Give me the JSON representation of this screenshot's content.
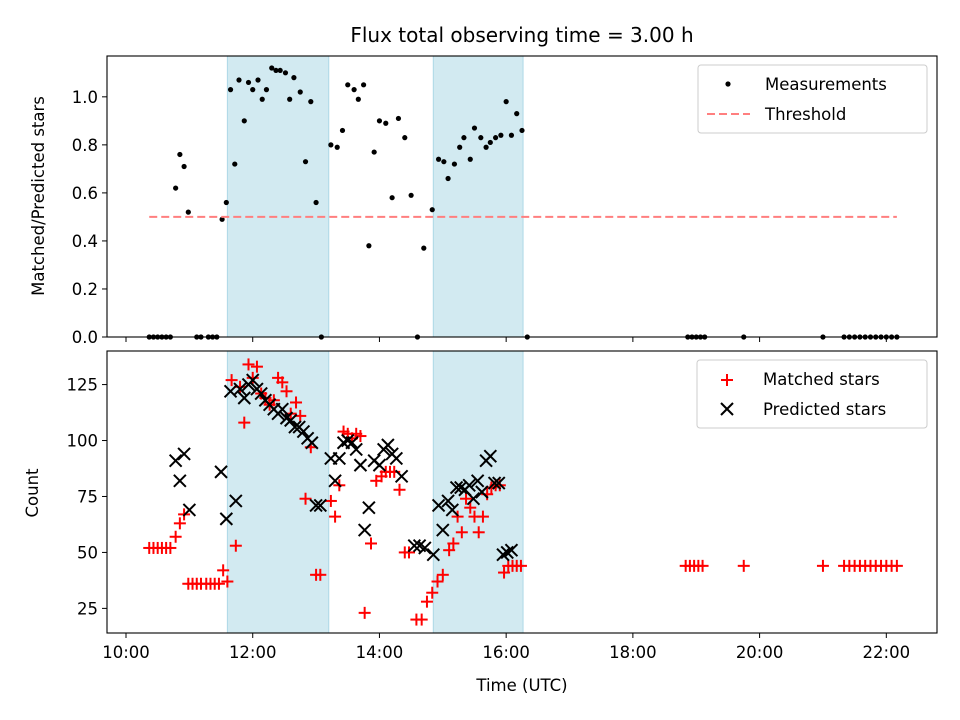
{
  "chart_data": {
    "title": "Flux total observing time = 3.00 h",
    "xlabel": "Time (UTC)",
    "x_ticks": [
      "10:00",
      "12:00",
      "14:00",
      "16:00",
      "18:00",
      "20:00",
      "22:00"
    ],
    "shaded_spans": [
      [
        "11:36",
        "13:12"
      ],
      [
        "14:51",
        "16:16"
      ]
    ],
    "shade_color": "#add8e6",
    "top": {
      "type": "scatter",
      "ylabel": "Matched/Predicted stars",
      "ylim": [
        0,
        1.17
      ],
      "y_ticks": [
        "0.0",
        "0.2",
        "0.4",
        "0.6",
        "0.8",
        "1.0"
      ],
      "legend_position": "top-right",
      "series": [
        {
          "name": "Measurements",
          "color": "#000000",
          "marker": "dot",
          "points": [
            [
              "10:22",
              0
            ],
            [
              "10:26",
              0
            ],
            [
              "10:30",
              0
            ],
            [
              "10:34",
              0
            ],
            [
              "10:38",
              0
            ],
            [
              "10:42",
              0
            ],
            [
              "10:47",
              0.62
            ],
            [
              "10:51",
              0.76
            ],
            [
              "10:55",
              0.71
            ],
            [
              "10:59",
              0.52
            ],
            [
              "11:07",
              0
            ],
            [
              "11:11",
              0
            ],
            [
              "11:18",
              0
            ],
            [
              "11:22",
              0
            ],
            [
              "11:26",
              0
            ],
            [
              "11:31",
              0.49
            ],
            [
              "11:35",
              0.56
            ],
            [
              "11:39",
              1.03
            ],
            [
              "11:43",
              0.72
            ],
            [
              "11:47",
              1.07
            ],
            [
              "11:52",
              0.9
            ],
            [
              "11:56",
              1.06
            ],
            [
              "12:00",
              1.03
            ],
            [
              "12:05",
              1.07
            ],
            [
              "12:09",
              0.99
            ],
            [
              "12:13",
              1.03
            ],
            [
              "12:18",
              1.12
            ],
            [
              "12:22",
              1.11
            ],
            [
              "12:26",
              1.11
            ],
            [
              "12:31",
              1.1
            ],
            [
              "12:35",
              0.99
            ],
            [
              "12:39",
              1.08
            ],
            [
              "12:45",
              1.02
            ],
            [
              "12:50",
              0.73
            ],
            [
              "12:55",
              0.98
            ],
            [
              "13:00",
              0.56
            ],
            [
              "13:05",
              0
            ],
            [
              "13:14",
              0.8
            ],
            [
              "13:20",
              0.79
            ],
            [
              "13:25",
              0.86
            ],
            [
              "13:30",
              1.05
            ],
            [
              "13:36",
              1.03
            ],
            [
              "13:40",
              0.99
            ],
            [
              "13:45",
              1.05
            ],
            [
              "13:50",
              0.38
            ],
            [
              "13:55",
              0.77
            ],
            [
              "14:00",
              0.9
            ],
            [
              "14:06",
              0.89
            ],
            [
              "14:12",
              0.58
            ],
            [
              "14:18",
              0.91
            ],
            [
              "14:24",
              0.83
            ],
            [
              "14:30",
              0.59
            ],
            [
              "14:36",
              0
            ],
            [
              "14:42",
              0.37
            ],
            [
              "14:50",
              0.53
            ],
            [
              "14:56",
              0.74
            ],
            [
              "15:01",
              0.73
            ],
            [
              "15:05",
              0.66
            ],
            [
              "15:11",
              0.72
            ],
            [
              "15:16",
              0.79
            ],
            [
              "15:20",
              0.83
            ],
            [
              "15:26",
              0.74
            ],
            [
              "15:30",
              0.87
            ],
            [
              "15:36",
              0.83
            ],
            [
              "15:41",
              0.79
            ],
            [
              "15:45",
              0.81
            ],
            [
              "15:50",
              0.83
            ],
            [
              "15:55",
              0.84
            ],
            [
              "16:00",
              0.98
            ],
            [
              "16:05",
              0.84
            ],
            [
              "16:10",
              0.93
            ],
            [
              "16:15",
              0.86
            ],
            [
              "16:20",
              0
            ],
            [
              "18:52",
              0
            ],
            [
              "18:56",
              0
            ],
            [
              "19:00",
              0
            ],
            [
              "19:04",
              0
            ],
            [
              "19:08",
              0
            ],
            [
              "19:45",
              0
            ],
            [
              "21:00",
              0
            ],
            [
              "21:20",
              0
            ],
            [
              "21:25",
              0
            ],
            [
              "21:30",
              0
            ],
            [
              "21:35",
              0
            ],
            [
              "21:40",
              0
            ],
            [
              "21:45",
              0
            ],
            [
              "21:50",
              0
            ],
            [
              "21:55",
              0
            ],
            [
              "22:00",
              0
            ],
            [
              "22:05",
              0
            ],
            [
              "22:10",
              0
            ]
          ]
        },
        {
          "name": "Threshold",
          "color": "#ff7f7f",
          "style": "dashed",
          "points": [
            [
              "10:22",
              0.5
            ],
            [
              "22:10",
              0.5
            ]
          ]
        }
      ]
    },
    "bottom": {
      "type": "scatter",
      "ylabel": "Count",
      "ylim": [
        14,
        140
      ],
      "y_ticks": [
        "25",
        "50",
        "75",
        "100",
        "125"
      ],
      "legend_position": "top-right",
      "series": [
        {
          "name": "Matched stars",
          "color": "#ff0000",
          "marker": "plus",
          "points": [
            [
              "10:22",
              52
            ],
            [
              "10:26",
              52
            ],
            [
              "10:30",
              52
            ],
            [
              "10:34",
              52
            ],
            [
              "10:38",
              52
            ],
            [
              "10:42",
              52
            ],
            [
              "10:47",
              57
            ],
            [
              "10:51",
              63
            ],
            [
              "10:55",
              67
            ],
            [
              "10:59",
              36
            ],
            [
              "11:03",
              36
            ],
            [
              "11:07",
              36
            ],
            [
              "11:11",
              36
            ],
            [
              "11:16",
              36
            ],
            [
              "11:20",
              36
            ],
            [
              "11:24",
              36
            ],
            [
              "11:28",
              36
            ],
            [
              "11:32",
              42
            ],
            [
              "11:36",
              37
            ],
            [
              "11:40",
              127
            ],
            [
              "11:44",
              53
            ],
            [
              "11:48",
              124
            ],
            [
              "11:52",
              108
            ],
            [
              "11:56",
              134
            ],
            [
              "12:00",
              128
            ],
            [
              "12:04",
              133
            ],
            [
              "12:08",
              121
            ],
            [
              "12:12",
              119
            ],
            [
              "12:16",
              116
            ],
            [
              "12:20",
              118
            ],
            [
              "12:24",
              128
            ],
            [
              "12:28",
              126
            ],
            [
              "12:32",
              122
            ],
            [
              "12:36",
              112
            ],
            [
              "12:41",
              117
            ],
            [
              "12:45",
              111
            ],
            [
              "12:50",
              74
            ],
            [
              "12:55",
              97
            ],
            [
              "13:00",
              40
            ],
            [
              "13:04",
              40
            ],
            [
              "13:14",
              73
            ],
            [
              "13:18",
              66
            ],
            [
              "13:22",
              80
            ],
            [
              "13:26",
              104
            ],
            [
              "13:30",
              103
            ],
            [
              "13:34",
              101
            ],
            [
              "13:38",
              103
            ],
            [
              "13:42",
              102
            ],
            [
              "13:46",
              23
            ],
            [
              "13:52",
              54
            ],
            [
              "13:57",
              82
            ],
            [
              "14:02",
              84
            ],
            [
              "14:06",
              86
            ],
            [
              "14:10",
              86
            ],
            [
              "14:14",
              86
            ],
            [
              "14:19",
              78
            ],
            [
              "14:24",
              50
            ],
            [
              "14:28",
              50
            ],
            [
              "14:35",
              20
            ],
            [
              "14:40",
              20
            ],
            [
              "14:45",
              28
            ],
            [
              "14:50",
              32
            ],
            [
              "14:55",
              37
            ],
            [
              "15:00",
              40
            ],
            [
              "15:06",
              51
            ],
            [
              "15:10",
              54
            ],
            [
              "15:14",
              66
            ],
            [
              "15:18",
              59
            ],
            [
              "15:22",
              74
            ],
            [
              "15:26",
              70
            ],
            [
              "15:30",
              66
            ],
            [
              "15:34",
              59
            ],
            [
              "15:38",
              66
            ],
            [
              "15:42",
              76
            ],
            [
              "15:46",
              79
            ],
            [
              "15:50",
              80
            ],
            [
              "15:54",
              80
            ],
            [
              "15:58",
              41
            ],
            [
              "16:02",
              44
            ],
            [
              "16:06",
              44
            ],
            [
              "16:10",
              44
            ],
            [
              "16:14",
              44
            ],
            [
              "18:50",
              44
            ],
            [
              "18:54",
              44
            ],
            [
              "18:58",
              44
            ],
            [
              "19:02",
              44
            ],
            [
              "19:06",
              44
            ],
            [
              "19:45",
              44
            ],
            [
              "21:00",
              44
            ],
            [
              "21:20",
              44
            ],
            [
              "21:25",
              44
            ],
            [
              "21:30",
              44
            ],
            [
              "21:35",
              44
            ],
            [
              "21:40",
              44
            ],
            [
              "21:45",
              44
            ],
            [
              "21:50",
              44
            ],
            [
              "21:55",
              44
            ],
            [
              "22:00",
              44
            ],
            [
              "22:05",
              44
            ],
            [
              "22:10",
              44
            ]
          ]
        },
        {
          "name": "Predicted stars",
          "color": "#000000",
          "marker": "x",
          "points": [
            [
              "10:47",
              91
            ],
            [
              "10:51",
              82
            ],
            [
              "10:55",
              94
            ],
            [
              "11:00",
              69
            ],
            [
              "11:30",
              86
            ],
            [
              "11:35",
              65
            ],
            [
              "11:39",
              122
            ],
            [
              "11:44",
              73
            ],
            [
              "11:48",
              123
            ],
            [
              "11:52",
              119
            ],
            [
              "11:56",
              125
            ],
            [
              "12:00",
              127
            ],
            [
              "12:04",
              123
            ],
            [
              "12:08",
              121
            ],
            [
              "12:12",
              118
            ],
            [
              "12:16",
              116
            ],
            [
              "12:20",
              114
            ],
            [
              "12:24",
              112
            ],
            [
              "12:28",
              114
            ],
            [
              "12:32",
              110
            ],
            [
              "12:36",
              109
            ],
            [
              "12:40",
              106
            ],
            [
              "12:44",
              106
            ],
            [
              "12:48",
              104
            ],
            [
              "12:52",
              101
            ],
            [
              "12:56",
              99
            ],
            [
              "13:00",
              71
            ],
            [
              "13:04",
              71
            ],
            [
              "13:14",
              92
            ],
            [
              "13:18",
              82
            ],
            [
              "13:22",
              92
            ],
            [
              "13:26",
              99
            ],
            [
              "13:30",
              100
            ],
            [
              "13:34",
              99
            ],
            [
              "13:38",
              96
            ],
            [
              "13:42",
              89
            ],
            [
              "13:46",
              60
            ],
            [
              "13:50",
              70
            ],
            [
              "13:55",
              91
            ],
            [
              "14:00",
              89
            ],
            [
              "14:04",
              96
            ],
            [
              "14:08",
              98
            ],
            [
              "14:12",
              94
            ],
            [
              "14:16",
              92
            ],
            [
              "14:21",
              84
            ],
            [
              "14:33",
              53
            ],
            [
              "14:38",
              53
            ],
            [
              "14:43",
              52
            ],
            [
              "14:51",
              49
            ],
            [
              "14:56",
              71
            ],
            [
              "15:00",
              60
            ],
            [
              "15:05",
              73
            ],
            [
              "15:09",
              69
            ],
            [
              "15:13",
              79
            ],
            [
              "15:17",
              79
            ],
            [
              "15:21",
              78
            ],
            [
              "15:25",
              80
            ],
            [
              "15:29",
              74
            ],
            [
              "15:33",
              82
            ],
            [
              "15:37",
              77
            ],
            [
              "15:41",
              91
            ],
            [
              "15:45",
              93
            ],
            [
              "15:49",
              81
            ],
            [
              "15:53",
              81
            ],
            [
              "15:57",
              49
            ],
            [
              "16:01",
              50
            ],
            [
              "16:05",
              51
            ]
          ]
        }
      ]
    }
  }
}
